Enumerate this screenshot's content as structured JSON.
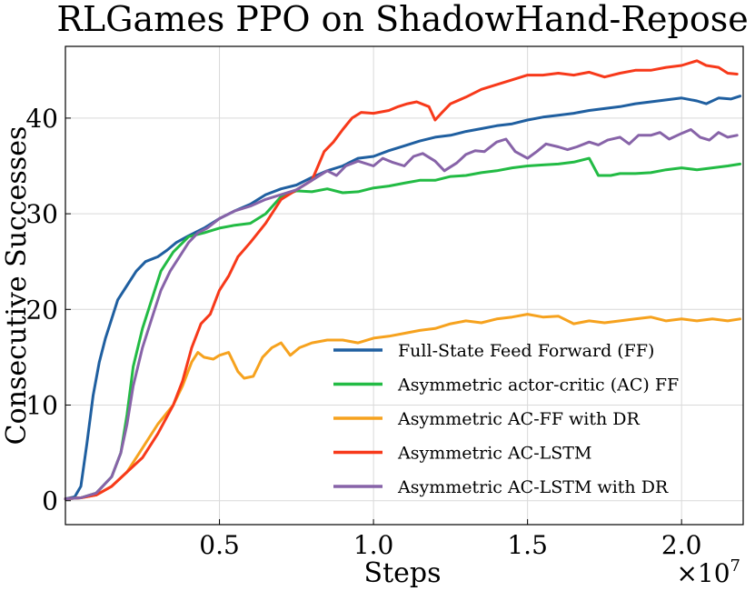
{
  "chart_data": {
    "type": "line",
    "title": "RLGames PPO on ShadowHand-Repose",
    "xlabel": "Steps",
    "ylabel": "Consecutive Successes",
    "x_scale_label": "×10^7",
    "xlim": [
      0,
      2.2
    ],
    "ylim": [
      -2.5,
      47.5
    ],
    "xticks": [
      0.5,
      1.0,
      1.5,
      2.0
    ],
    "xtick_labels": [
      "0.5",
      "1.0",
      "1.5",
      "2.0"
    ],
    "yticks": [
      0,
      10,
      20,
      30,
      40
    ],
    "ytick_labels": [
      "0",
      "10",
      "20",
      "30",
      "40"
    ],
    "grid": true,
    "legend_position": "lower-right",
    "series": [
      {
        "name": "Full-State Feed Forward (FF)",
        "color": "#1f5fa0",
        "points": [
          [
            0.0,
            0.2
          ],
          [
            0.03,
            0.4
          ],
          [
            0.05,
            1.5
          ],
          [
            0.07,
            6
          ],
          [
            0.09,
            11
          ],
          [
            0.11,
            14.5
          ],
          [
            0.13,
            17
          ],
          [
            0.15,
            19
          ],
          [
            0.17,
            21
          ],
          [
            0.2,
            22.5
          ],
          [
            0.23,
            24
          ],
          [
            0.26,
            25
          ],
          [
            0.3,
            25.5
          ],
          [
            0.33,
            26.2
          ],
          [
            0.36,
            27
          ],
          [
            0.4,
            27.7
          ],
          [
            0.45,
            28.5
          ],
          [
            0.5,
            29.5
          ],
          [
            0.55,
            30.3
          ],
          [
            0.6,
            31
          ],
          [
            0.65,
            32
          ],
          [
            0.7,
            32.6
          ],
          [
            0.75,
            33
          ],
          [
            0.8,
            33.8
          ],
          [
            0.85,
            34.5
          ],
          [
            0.9,
            35
          ],
          [
            0.95,
            35.8
          ],
          [
            1.0,
            36
          ],
          [
            1.05,
            36.6
          ],
          [
            1.1,
            37.1
          ],
          [
            1.15,
            37.6
          ],
          [
            1.2,
            38
          ],
          [
            1.25,
            38.2
          ],
          [
            1.3,
            38.6
          ],
          [
            1.35,
            38.9
          ],
          [
            1.4,
            39.2
          ],
          [
            1.45,
            39.4
          ],
          [
            1.5,
            39.8
          ],
          [
            1.55,
            40.1
          ],
          [
            1.6,
            40.3
          ],
          [
            1.65,
            40.5
          ],
          [
            1.7,
            40.8
          ],
          [
            1.75,
            41
          ],
          [
            1.8,
            41.2
          ],
          [
            1.85,
            41.5
          ],
          [
            1.9,
            41.7
          ],
          [
            1.95,
            41.9
          ],
          [
            2.0,
            42.1
          ],
          [
            2.05,
            41.8
          ],
          [
            2.08,
            41.5
          ],
          [
            2.12,
            42.1
          ],
          [
            2.16,
            42
          ],
          [
            2.19,
            42.3
          ]
        ]
      },
      {
        "name": "Asymmetric actor-critic (AC) FF",
        "color": "#22bb44",
        "points": [
          [
            0.0,
            0.2
          ],
          [
            0.05,
            0.3
          ],
          [
            0.1,
            0.8
          ],
          [
            0.15,
            2.5
          ],
          [
            0.18,
            5
          ],
          [
            0.2,
            9
          ],
          [
            0.22,
            14
          ],
          [
            0.25,
            18
          ],
          [
            0.28,
            21
          ],
          [
            0.31,
            24
          ],
          [
            0.35,
            26
          ],
          [
            0.4,
            27.6
          ],
          [
            0.45,
            28
          ],
          [
            0.5,
            28.5
          ],
          [
            0.55,
            28.8
          ],
          [
            0.6,
            29
          ],
          [
            0.65,
            30
          ],
          [
            0.7,
            31.8
          ],
          [
            0.75,
            32.4
          ],
          [
            0.8,
            32.3
          ],
          [
            0.85,
            32.6
          ],
          [
            0.9,
            32.2
          ],
          [
            0.95,
            32.3
          ],
          [
            1.0,
            32.7
          ],
          [
            1.05,
            32.9
          ],
          [
            1.1,
            33.2
          ],
          [
            1.15,
            33.5
          ],
          [
            1.2,
            33.5
          ],
          [
            1.25,
            33.9
          ],
          [
            1.3,
            34
          ],
          [
            1.35,
            34.3
          ],
          [
            1.4,
            34.5
          ],
          [
            1.45,
            34.8
          ],
          [
            1.5,
            35
          ],
          [
            1.55,
            35.1
          ],
          [
            1.6,
            35.2
          ],
          [
            1.65,
            35.4
          ],
          [
            1.7,
            35.8
          ],
          [
            1.73,
            34
          ],
          [
            1.77,
            34
          ],
          [
            1.8,
            34.2
          ],
          [
            1.85,
            34.2
          ],
          [
            1.9,
            34.3
          ],
          [
            1.95,
            34.6
          ],
          [
            2.0,
            34.8
          ],
          [
            2.05,
            34.6
          ],
          [
            2.1,
            34.8
          ],
          [
            2.15,
            35
          ],
          [
            2.19,
            35.2
          ]
        ]
      },
      {
        "name": "Asymmetric AC-FF with DR",
        "color": "#f6a21e",
        "points": [
          [
            0.0,
            0.2
          ],
          [
            0.05,
            0.3
          ],
          [
            0.1,
            0.6
          ],
          [
            0.15,
            1.5
          ],
          [
            0.2,
            3
          ],
          [
            0.25,
            5.5
          ],
          [
            0.3,
            8
          ],
          [
            0.35,
            10
          ],
          [
            0.38,
            12
          ],
          [
            0.41,
            14.5
          ],
          [
            0.43,
            15.5
          ],
          [
            0.45,
            15
          ],
          [
            0.48,
            14.8
          ],
          [
            0.5,
            15.2
          ],
          [
            0.53,
            15.5
          ],
          [
            0.56,
            13.5
          ],
          [
            0.58,
            12.8
          ],
          [
            0.61,
            13
          ],
          [
            0.64,
            15
          ],
          [
            0.67,
            16
          ],
          [
            0.7,
            16.5
          ],
          [
            0.73,
            15.2
          ],
          [
            0.76,
            16
          ],
          [
            0.8,
            16.5
          ],
          [
            0.85,
            16.8
          ],
          [
            0.9,
            16.8
          ],
          [
            0.95,
            16.5
          ],
          [
            1.0,
            17
          ],
          [
            1.05,
            17.2
          ],
          [
            1.1,
            17.5
          ],
          [
            1.15,
            17.8
          ],
          [
            1.2,
            18
          ],
          [
            1.25,
            18.5
          ],
          [
            1.3,
            18.8
          ],
          [
            1.35,
            18.6
          ],
          [
            1.4,
            19
          ],
          [
            1.45,
            19.2
          ],
          [
            1.5,
            19.5
          ],
          [
            1.55,
            19.2
          ],
          [
            1.6,
            19.3
          ],
          [
            1.65,
            18.5
          ],
          [
            1.7,
            18.8
          ],
          [
            1.75,
            18.6
          ],
          [
            1.8,
            18.8
          ],
          [
            1.85,
            19
          ],
          [
            1.9,
            19.2
          ],
          [
            1.95,
            18.8
          ],
          [
            2.0,
            19
          ],
          [
            2.05,
            18.8
          ],
          [
            2.1,
            19
          ],
          [
            2.15,
            18.8
          ],
          [
            2.19,
            19
          ]
        ]
      },
      {
        "name": "Asymmetric AC-LSTM",
        "color": "#f7391a",
        "points": [
          [
            0.0,
            0.2
          ],
          [
            0.05,
            0.3
          ],
          [
            0.1,
            0.6
          ],
          [
            0.15,
            1.5
          ],
          [
            0.2,
            3
          ],
          [
            0.25,
            4.5
          ],
          [
            0.3,
            7
          ],
          [
            0.35,
            10
          ],
          [
            0.38,
            12.5
          ],
          [
            0.41,
            16
          ],
          [
            0.44,
            18.5
          ],
          [
            0.47,
            19.5
          ],
          [
            0.5,
            22
          ],
          [
            0.53,
            23.5
          ],
          [
            0.56,
            25.5
          ],
          [
            0.6,
            27
          ],
          [
            0.65,
            29
          ],
          [
            0.7,
            31.5
          ],
          [
            0.75,
            32.5
          ],
          [
            0.8,
            33.5
          ],
          [
            0.82,
            35
          ],
          [
            0.84,
            36.5
          ],
          [
            0.87,
            37.5
          ],
          [
            0.9,
            38.8
          ],
          [
            0.93,
            40
          ],
          [
            0.96,
            40.6
          ],
          [
            1.0,
            40.5
          ],
          [
            1.05,
            40.8
          ],
          [
            1.08,
            41.2
          ],
          [
            1.11,
            41.5
          ],
          [
            1.14,
            41.7
          ],
          [
            1.18,
            41.2
          ],
          [
            1.2,
            39.8
          ],
          [
            1.22,
            40.5
          ],
          [
            1.25,
            41.5
          ],
          [
            1.3,
            42.2
          ],
          [
            1.35,
            43
          ],
          [
            1.4,
            43.5
          ],
          [
            1.45,
            44
          ],
          [
            1.5,
            44.5
          ],
          [
            1.55,
            44.5
          ],
          [
            1.6,
            44.7
          ],
          [
            1.65,
            44.5
          ],
          [
            1.7,
            44.8
          ],
          [
            1.75,
            44.3
          ],
          [
            1.8,
            44.7
          ],
          [
            1.85,
            45
          ],
          [
            1.9,
            45
          ],
          [
            1.95,
            45.3
          ],
          [
            2.0,
            45.5
          ],
          [
            2.05,
            46
          ],
          [
            2.08,
            45.5
          ],
          [
            2.12,
            45.3
          ],
          [
            2.15,
            44.7
          ],
          [
            2.18,
            44.6
          ]
        ]
      },
      {
        "name": "Asymmetric AC-LSTM with DR",
        "color": "#8763a8",
        "points": [
          [
            0.0,
            0.2
          ],
          [
            0.05,
            0.3
          ],
          [
            0.1,
            0.8
          ],
          [
            0.15,
            2.5
          ],
          [
            0.18,
            5
          ],
          [
            0.2,
            8
          ],
          [
            0.22,
            12
          ],
          [
            0.25,
            16
          ],
          [
            0.28,
            19
          ],
          [
            0.31,
            22
          ],
          [
            0.34,
            24
          ],
          [
            0.37,
            25.5
          ],
          [
            0.4,
            27
          ],
          [
            0.43,
            28
          ],
          [
            0.46,
            28.5
          ],
          [
            0.5,
            29.5
          ],
          [
            0.55,
            30.3
          ],
          [
            0.6,
            30.8
          ],
          [
            0.65,
            31.5
          ],
          [
            0.7,
            32
          ],
          [
            0.75,
            32.5
          ],
          [
            0.8,
            33.5
          ],
          [
            0.85,
            34.5
          ],
          [
            0.88,
            34
          ],
          [
            0.91,
            35
          ],
          [
            0.95,
            35.5
          ],
          [
            1.0,
            35
          ],
          [
            1.03,
            35.8
          ],
          [
            1.06,
            35.4
          ],
          [
            1.1,
            35
          ],
          [
            1.13,
            36
          ],
          [
            1.16,
            36.3
          ],
          [
            1.2,
            35.5
          ],
          [
            1.23,
            34.5
          ],
          [
            1.27,
            35.3
          ],
          [
            1.3,
            36.2
          ],
          [
            1.33,
            36.6
          ],
          [
            1.36,
            36.5
          ],
          [
            1.4,
            37.5
          ],
          [
            1.43,
            37.8
          ],
          [
            1.46,
            36.5
          ],
          [
            1.5,
            35.8
          ],
          [
            1.53,
            36.5
          ],
          [
            1.56,
            37.3
          ],
          [
            1.6,
            37
          ],
          [
            1.63,
            36.7
          ],
          [
            1.66,
            37
          ],
          [
            1.7,
            37.5
          ],
          [
            1.73,
            37.2
          ],
          [
            1.76,
            37.7
          ],
          [
            1.8,
            38
          ],
          [
            1.83,
            37.3
          ],
          [
            1.86,
            38.2
          ],
          [
            1.9,
            38.2
          ],
          [
            1.93,
            38.5
          ],
          [
            1.96,
            37.8
          ],
          [
            2.0,
            38.4
          ],
          [
            2.03,
            38.8
          ],
          [
            2.06,
            38
          ],
          [
            2.09,
            37.7
          ],
          [
            2.12,
            38.5
          ],
          [
            2.15,
            38
          ],
          [
            2.18,
            38.2
          ]
        ]
      }
    ]
  }
}
